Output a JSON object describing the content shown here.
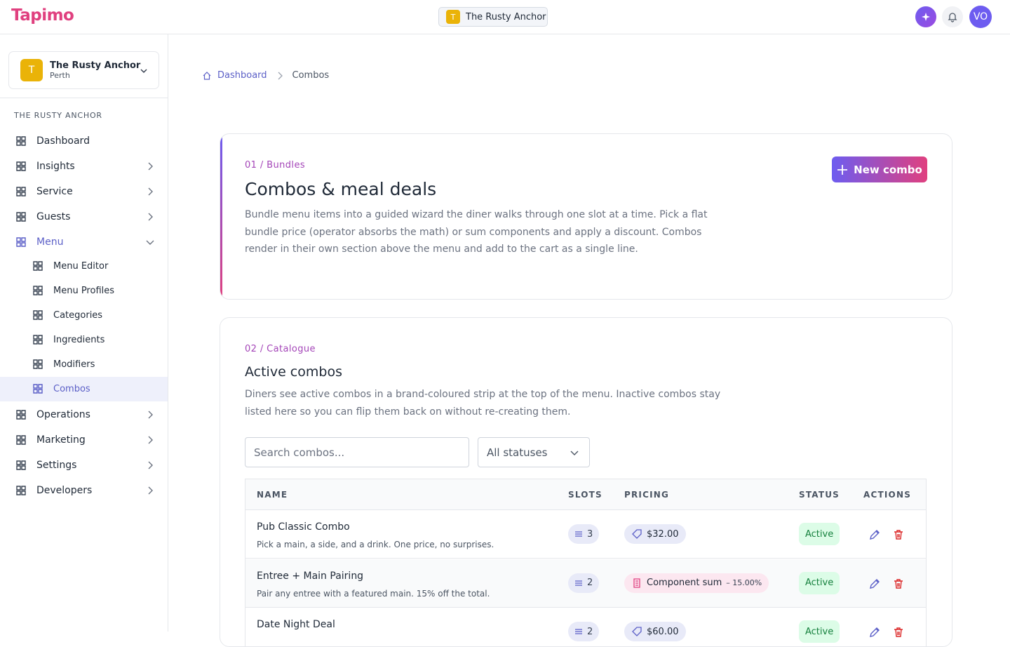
{
  "header": {
    "brand": "Tapimo",
    "venue_switcher": {
      "initial": "T",
      "name": "The Rusty Anchor"
    },
    "avatar": "VO"
  },
  "sidebar": {
    "venue_card": {
      "initial": "T",
      "name": "The Rusty Anchor",
      "location": "Perth"
    },
    "section_label": "THE RUSTY ANCHOR",
    "nav": [
      {
        "label": "Dashboard"
      },
      {
        "label": "Insights",
        "chevron": "right"
      },
      {
        "label": "Service",
        "chevron": "right"
      },
      {
        "label": "Guests",
        "chevron": "right"
      },
      {
        "label": "Menu",
        "chevron": "down",
        "active": true,
        "children": [
          {
            "label": "Menu Editor"
          },
          {
            "label": "Menu Profiles"
          },
          {
            "label": "Categories"
          },
          {
            "label": "Ingredients"
          },
          {
            "label": "Modifiers"
          },
          {
            "label": "Combos",
            "active": true
          }
        ]
      },
      {
        "label": "Operations",
        "chevron": "right"
      },
      {
        "label": "Marketing",
        "chevron": "right"
      },
      {
        "label": "Settings",
        "chevron": "right"
      },
      {
        "label": "Developers",
        "chevron": "right"
      }
    ]
  },
  "breadcrumb": [
    "Dashboard",
    "Combos"
  ],
  "hero": {
    "eyebrow": "01 / Bundles",
    "title": "Combos & meal deals",
    "description": "Bundle menu items into a guided wizard the diner walks through one slot at a time. Pick a flat bundle price (operator absorbs the math) or sum components and apply a discount. Combos render in their own section above the menu and add to the cart as a single line.",
    "button": "New combo"
  },
  "catalogue": {
    "eyebrow": "02 / Catalogue",
    "title": "Active combos",
    "description": "Diners see active combos in a brand-coloured strip at the top of the menu. Inactive combos stay listed here so you can flip them back on without re-creating them.",
    "search_placeholder": "Search combos...",
    "status_filter": "All statuses",
    "table": {
      "columns": [
        "NAME",
        "SLOTS",
        "PRICING",
        "STATUS",
        "ACTIONS"
      ],
      "rows": [
        {
          "name": "Pub Classic Combo",
          "description": "Pick a main, a side, and a drink. One price, no surprises.",
          "slots": "3",
          "pricing": "$32.00",
          "status": "Active"
        },
        {
          "name": "Entree + Main Pairing",
          "description": "Pair any entree with a featured main. 15% off the total.",
          "slots": "2",
          "pricing": "Component sum",
          "discount": "– 15.00%",
          "status": "Active"
        },
        {
          "name": "Date Night Deal",
          "slots": "2",
          "pricing": "$60.00",
          "status": "Active"
        }
      ]
    }
  }
}
